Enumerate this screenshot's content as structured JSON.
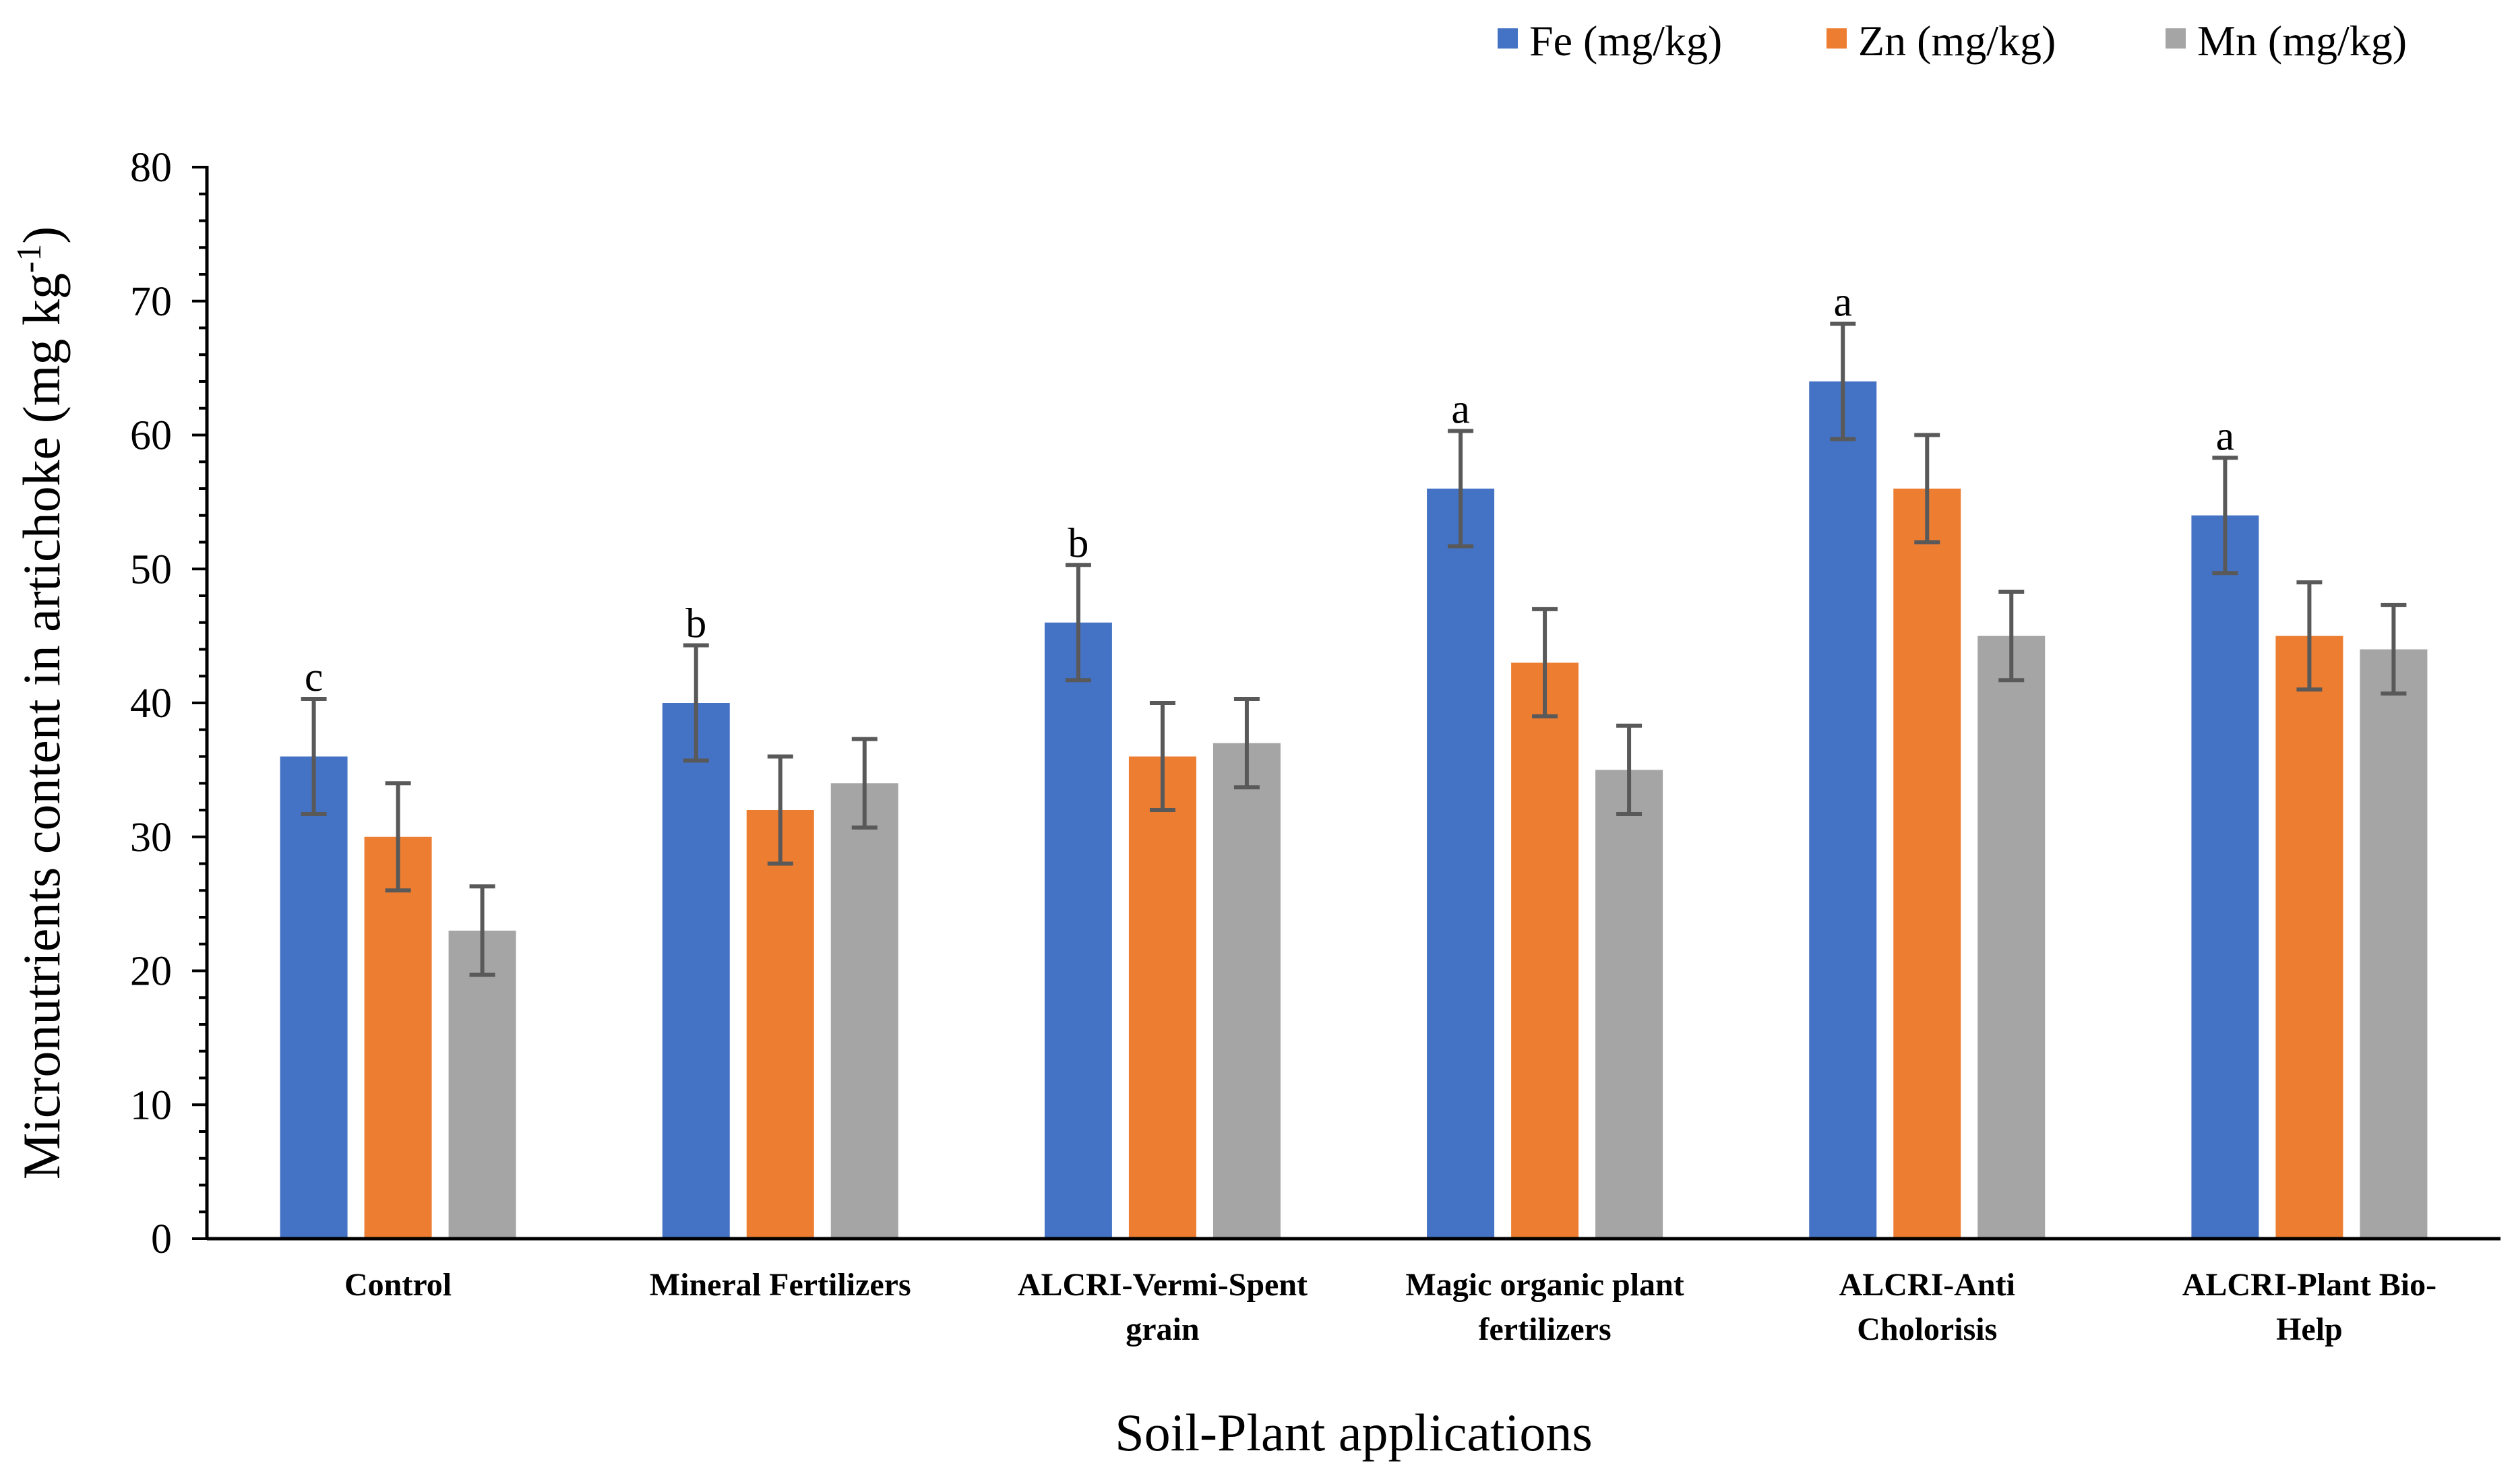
{
  "chart_data": {
    "type": "bar",
    "title": "",
    "xlabel": "Soil-Plant applications",
    "ylabel": "Micronutrients content in artichoke (mg kg",
    "ylabel_sup": "-1",
    "ylabel_close": ")",
    "ylim": [
      0,
      80
    ],
    "yticks": [
      0,
      10,
      20,
      30,
      40,
      50,
      60,
      70,
      80
    ],
    "categories": [
      [
        "Control"
      ],
      [
        "Mineral Fertilizers"
      ],
      [
        "ALCRI-Vermi-Spent",
        "grain"
      ],
      [
        "Magic organic plant",
        "fertilizers"
      ],
      [
        "ALCRI-Anti",
        "Cholorisis"
      ],
      [
        "ALCRI-Plant Bio-",
        "Help"
      ]
    ],
    "series": [
      {
        "name": "Fe (mg/kg)",
        "color": "#4472C4",
        "values": [
          36,
          40,
          46,
          56,
          64,
          54
        ],
        "errors": [
          4.3,
          4.3,
          4.3,
          4.3,
          4.3,
          4.3
        ]
      },
      {
        "name": "Zn (mg/kg)",
        "color": "#ED7D31",
        "values": [
          30,
          32,
          36,
          43,
          56,
          45
        ],
        "errors": [
          4,
          4,
          4,
          4,
          4,
          4
        ]
      },
      {
        "name": "Mn (mg/kg)",
        "color": "#A5A5A5",
        "values": [
          23,
          34,
          37,
          35,
          45,
          44
        ],
        "errors": [
          3.3,
          3.3,
          3.3,
          3.3,
          3.3,
          3.3
        ]
      }
    ],
    "annotations": [
      "c",
      "b",
      "b",
      "a",
      "a",
      "a"
    ],
    "legend_position": "top-right",
    "grid": false
  }
}
